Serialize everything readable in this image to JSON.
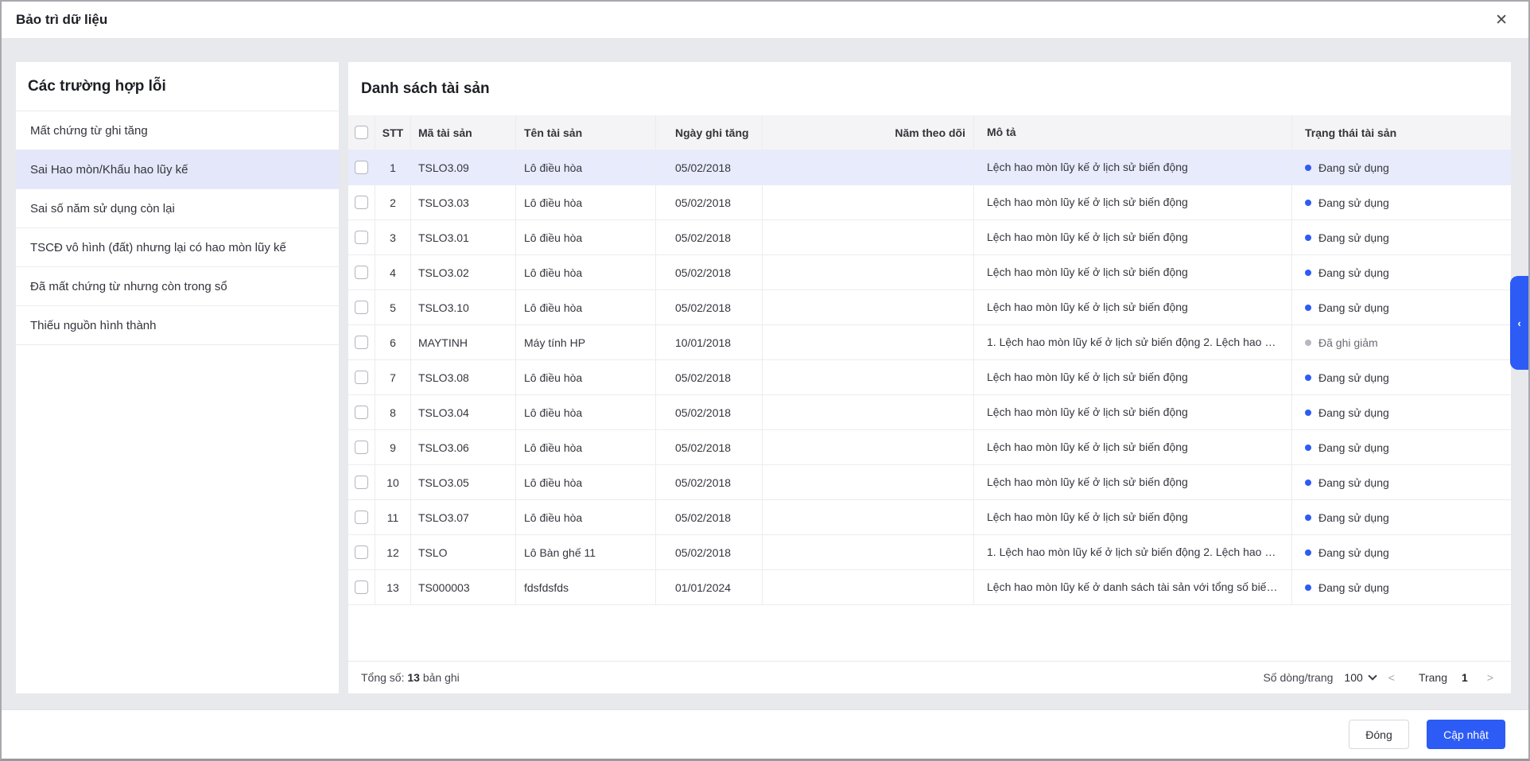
{
  "modal": {
    "title": "Bảo trì dữ liệu",
    "close_icon": "✕"
  },
  "sidebar": {
    "title": "Các trường hợp lỗi",
    "items": [
      {
        "label": "Mất chứng từ ghi tăng",
        "selected": false
      },
      {
        "label": "Sai Hao mòn/Khấu hao lũy kế",
        "selected": true
      },
      {
        "label": "Sai số năm sử dụng còn lại",
        "selected": false
      },
      {
        "label": "TSCĐ vô hình (đất) nhưng lại có hao mòn lũy kế",
        "selected": false
      },
      {
        "label": "Đã mất chứng từ nhưng còn trong sổ",
        "selected": false
      },
      {
        "label": "Thiếu nguồn hình thành",
        "selected": false
      }
    ]
  },
  "main": {
    "title": "Danh sách tài sản",
    "table": {
      "columns": {
        "stt": "STT",
        "code": "Mã tài sản",
        "name": "Tên tài sản",
        "date": "Ngày ghi tăng",
        "year": "Năm theo dõi",
        "desc": "Mô tả",
        "status": "Trạng thái tài sản"
      },
      "rows": [
        {
          "stt": "1",
          "code": "TSLO3.09",
          "name": "Lô điều hòa",
          "date": "05/02/2018",
          "year": "",
          "desc": "Lệch hao mòn lũy kế ở lịch sử biến động",
          "status": "Đang sử dụng",
          "status_type": "active",
          "highlighted": true
        },
        {
          "stt": "2",
          "code": "TSLO3.03",
          "name": "Lô điều hòa",
          "date": "05/02/2018",
          "year": "",
          "desc": "Lệch hao mòn lũy kế ở lịch sử biến động",
          "status": "Đang sử dụng",
          "status_type": "active",
          "highlighted": false
        },
        {
          "stt": "3",
          "code": "TSLO3.01",
          "name": "Lô điều hòa",
          "date": "05/02/2018",
          "year": "",
          "desc": "Lệch hao mòn lũy kế ở lịch sử biến động",
          "status": "Đang sử dụng",
          "status_type": "active",
          "highlighted": false
        },
        {
          "stt": "4",
          "code": "TSLO3.02",
          "name": "Lô điều hòa",
          "date": "05/02/2018",
          "year": "",
          "desc": "Lệch hao mòn lũy kế ở lịch sử biến động",
          "status": "Đang sử dụng",
          "status_type": "active",
          "highlighted": false
        },
        {
          "stt": "5",
          "code": "TSLO3.10",
          "name": "Lô điều hòa",
          "date": "05/02/2018",
          "year": "",
          "desc": "Lệch hao mòn lũy kế ở lịch sử biến động",
          "status": "Đang sử dụng",
          "status_type": "active",
          "highlighted": false
        },
        {
          "stt": "6",
          "code": "MAYTINH",
          "name": "Máy tính HP",
          "date": "10/01/2018",
          "year": "",
          "desc": "1. Lệch hao mòn lũy kế ở lịch sử biến động 2. Lệch hao m...",
          "status": "Đã ghi giảm",
          "status_type": "inactive",
          "highlighted": false
        },
        {
          "stt": "7",
          "code": "TSLO3.08",
          "name": "Lô điều hòa",
          "date": "05/02/2018",
          "year": "",
          "desc": "Lệch hao mòn lũy kế ở lịch sử biến động",
          "status": "Đang sử dụng",
          "status_type": "active",
          "highlighted": false
        },
        {
          "stt": "8",
          "code": "TSLO3.04",
          "name": "Lô điều hòa",
          "date": "05/02/2018",
          "year": "",
          "desc": "Lệch hao mòn lũy kế ở lịch sử biến động",
          "status": "Đang sử dụng",
          "status_type": "active",
          "highlighted": false
        },
        {
          "stt": "9",
          "code": "TSLO3.06",
          "name": "Lô điều hòa",
          "date": "05/02/2018",
          "year": "",
          "desc": "Lệch hao mòn lũy kế ở lịch sử biến động",
          "status": "Đang sử dụng",
          "status_type": "active",
          "highlighted": false
        },
        {
          "stt": "10",
          "code": "TSLO3.05",
          "name": "Lô điều hòa",
          "date": "05/02/2018",
          "year": "",
          "desc": "Lệch hao mòn lũy kế ở lịch sử biến động",
          "status": "Đang sử dụng",
          "status_type": "active",
          "highlighted": false
        },
        {
          "stt": "11",
          "code": "TSLO3.07",
          "name": "Lô điều hòa",
          "date": "05/02/2018",
          "year": "",
          "desc": "Lệch hao mòn lũy kế ở lịch sử biến động",
          "status": "Đang sử dụng",
          "status_type": "active",
          "highlighted": false
        },
        {
          "stt": "12",
          "code": "TSLO",
          "name": "Lô Bàn ghế 11",
          "date": "05/02/2018",
          "year": "",
          "desc": "1. Lệch hao mòn lũy kế ở lịch sử biến động 2. Lệch hao m...",
          "status": "Đang sử dụng",
          "status_type": "active",
          "highlighted": false
        },
        {
          "stt": "13",
          "code": "TS000003",
          "name": "fdsfdsfds",
          "date": "01/01/2024",
          "year": "",
          "desc": "Lệch hao mòn lũy kế ở danh sách tài sản với tổng số biến ...",
          "status": "Đang sử dụng",
          "status_type": "active",
          "highlighted": false
        }
      ]
    },
    "footer": {
      "total_prefix": "Tổng số:",
      "total_value": "13",
      "total_suffix": "bản ghi",
      "rows_per_page_label": "Số dòng/trang",
      "rows_per_page_value": "100",
      "prev_icon": "<",
      "page_label": "Trang",
      "page_value": "1",
      "next_icon": ">"
    }
  },
  "actions": {
    "close": "Đóng",
    "update": "Cập nhật"
  },
  "side_tab": {
    "collapse_icon": "‹"
  },
  "colors": {
    "primary_blue": "#2d5bf5",
    "status_active_dot": "#2d5bf5",
    "status_inactive_dot": "#b7b9c0",
    "selected_row_bg": "#e7ebfb",
    "selected_sidebar_bg": "#e3e7f9",
    "body_bg": "#e8e9ec"
  }
}
